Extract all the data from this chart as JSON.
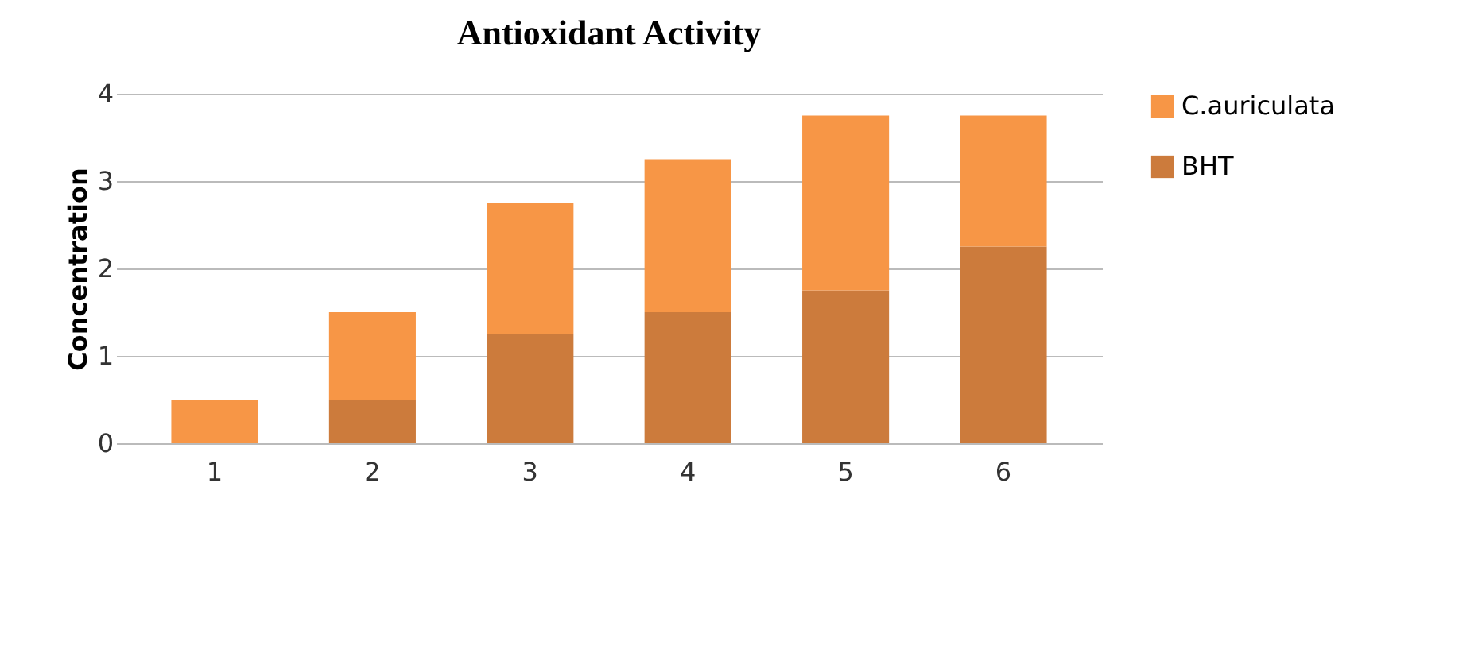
{
  "chart_data": {
    "type": "bar",
    "title": "Antioxidant Activity",
    "ylabel": "Concentration",
    "categories": [
      "1",
      "2",
      "3",
      "4",
      "5",
      "6"
    ],
    "stacked": true,
    "series": [
      {
        "name": "BHT",
        "color": "#cc7b3c",
        "values": [
          0,
          0.5,
          1.25,
          1.5,
          1.75,
          2.25
        ]
      },
      {
        "name": "C.auriculata",
        "color": "#f79646",
        "values": [
          0.5,
          1,
          1.5,
          1.75,
          2,
          1.5
        ]
      }
    ],
    "ylim": [
      0,
      4
    ],
    "yticks": [
      0,
      1,
      2,
      3,
      4
    ],
    "grid": "y",
    "legend": "right"
  }
}
